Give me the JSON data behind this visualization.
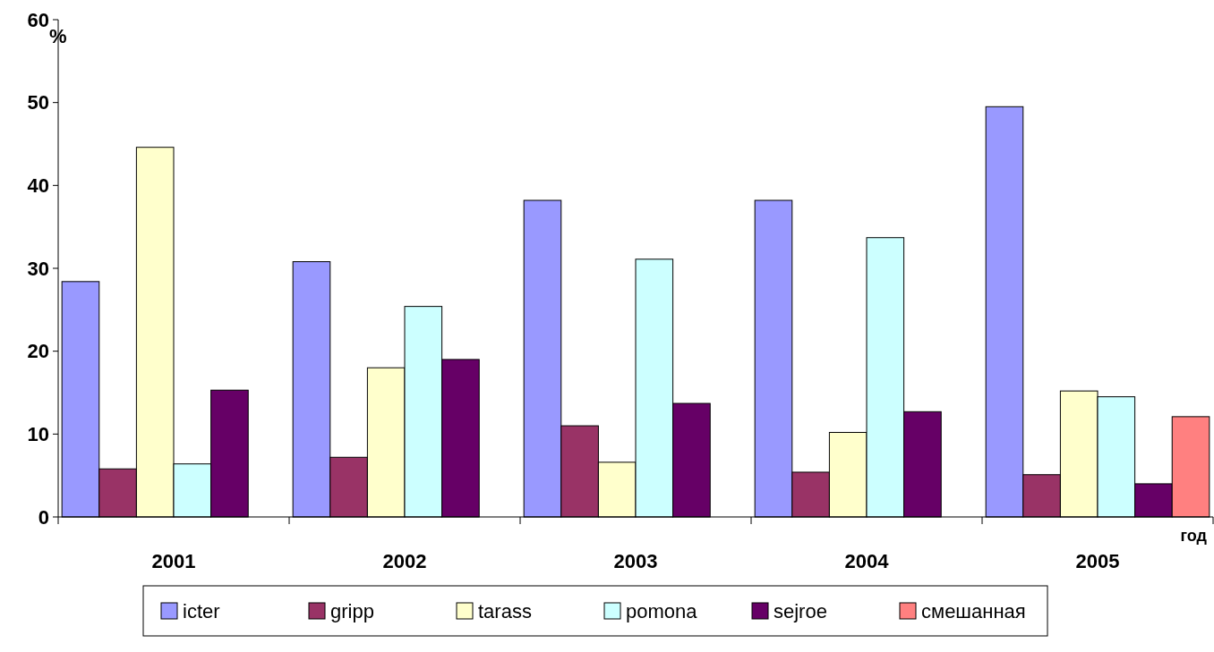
{
  "chart_data": {
    "type": "bar",
    "ylabel": "%",
    "xlabel": "год",
    "categories": [
      "2001",
      "2002",
      "2003",
      "2004",
      "2005"
    ],
    "series": [
      {
        "name": "icter",
        "color": "#9999ff",
        "values": [
          28.4,
          30.8,
          38.2,
          38.2,
          49.5
        ]
      },
      {
        "name": "gripp",
        "color": "#993366",
        "values": [
          5.8,
          7.2,
          11.0,
          5.4,
          5.1
        ]
      },
      {
        "name": "tarass",
        "color": "#ffffcc",
        "values": [
          44.6,
          18.0,
          6.6,
          10.2,
          15.2
        ]
      },
      {
        "name": "pomona",
        "color": "#ccffff",
        "values": [
          6.4,
          25.4,
          31.1,
          33.7,
          14.5
        ]
      },
      {
        "name": "sejroe",
        "color": "#660066",
        "values": [
          15.3,
          19.0,
          13.7,
          12.7,
          4.0
        ]
      },
      {
        "name": "смешанная",
        "color": "#ff8080",
        "values": [
          null,
          null,
          null,
          null,
          12.1
        ]
      }
    ],
    "ylim": [
      0,
      60
    ],
    "yticks": [
      0,
      10,
      20,
      30,
      40,
      50,
      60
    ],
    "grid": false,
    "legend": "bottom"
  }
}
